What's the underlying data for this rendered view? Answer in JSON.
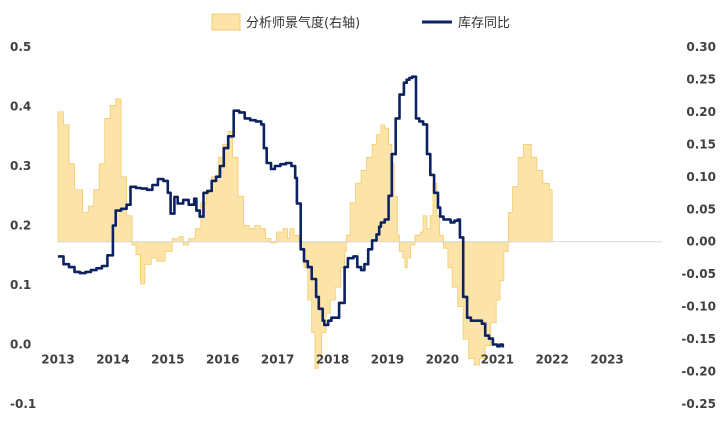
{
  "chart_data": {
    "type": "area+line",
    "title": "",
    "x_ticks": [
      "2013",
      "2014",
      "2015",
      "2016",
      "2017",
      "2018",
      "2019",
      "2020",
      "2021",
      "2022",
      "2023"
    ],
    "y_left": {
      "ticks": [
        "0.5",
        "0.4",
        "0.3",
        "0.2",
        "0.1",
        "0.0",
        "-0.1"
      ],
      "range": [
        -0.1,
        0.5
      ]
    },
    "y_right": {
      "ticks": [
        "0.30",
        "0.25",
        "0.20",
        "0.15",
        "0.10",
        "0.05",
        "0.00",
        "-0.05",
        "-0.10",
        "-0.15",
        "-0.20",
        "-0.25"
      ],
      "range": [
        -0.25,
        0.3
      ]
    },
    "grid": false,
    "legend_position": "top",
    "series": [
      {
        "name": "分析师景气度(右轴)",
        "kind": "area",
        "axis": "right",
        "color": "#FCE4A8",
        "edge_color": "#F3CB6C",
        "points": [
          [
            2013.0,
            0.2
          ],
          [
            2013.1,
            0.18
          ],
          [
            2013.2,
            0.12
          ],
          [
            2013.3,
            0.08
          ],
          [
            2013.45,
            0.045
          ],
          [
            2013.55,
            0.055
          ],
          [
            2013.65,
            0.08
          ],
          [
            2013.75,
            0.12
          ],
          [
            2013.85,
            0.19
          ],
          [
            2013.95,
            0.21
          ],
          [
            2014.05,
            0.22
          ],
          [
            2014.15,
            0.1
          ],
          [
            2014.25,
            0.04
          ],
          [
            2014.35,
            -0.005
          ],
          [
            2014.42,
            -0.02
          ],
          [
            2014.5,
            -0.065
          ],
          [
            2014.58,
            -0.035
          ],
          [
            2014.7,
            -0.025
          ],
          [
            2014.8,
            -0.03
          ],
          [
            2014.95,
            -0.015
          ],
          [
            2015.08,
            0.005
          ],
          [
            2015.2,
            0.008
          ],
          [
            2015.28,
            -0.005
          ],
          [
            2015.38,
            0.005
          ],
          [
            2015.5,
            0.02
          ],
          [
            2015.6,
            0.06
          ],
          [
            2015.7,
            0.08
          ],
          [
            2015.8,
            0.1
          ],
          [
            2015.92,
            0.13
          ],
          [
            2016.0,
            0.15
          ],
          [
            2016.1,
            0.17
          ],
          [
            2016.18,
            0.13
          ],
          [
            2016.28,
            0.07
          ],
          [
            2016.38,
            0.025
          ],
          [
            2016.48,
            0.02
          ],
          [
            2016.58,
            0.025
          ],
          [
            2016.68,
            0.02
          ],
          [
            2016.78,
            0.005
          ],
          [
            2016.88,
            -0.002
          ],
          [
            2016.98,
            0.015
          ],
          [
            2017.1,
            0.02
          ],
          [
            2017.18,
            0.005
          ],
          [
            2017.22,
            0.02
          ],
          [
            2017.3,
            0.01
          ],
          [
            2017.38,
            0.005
          ],
          [
            2017.4,
            -0.01
          ],
          [
            2017.48,
            -0.04
          ],
          [
            2017.55,
            -0.09
          ],
          [
            2017.62,
            -0.14
          ],
          [
            2017.68,
            -0.195
          ],
          [
            2017.74,
            -0.175
          ],
          [
            2017.8,
            -0.14
          ],
          [
            2017.88,
            -0.11
          ],
          [
            2017.96,
            -0.09
          ],
          [
            2018.05,
            -0.07
          ],
          [
            2018.15,
            -0.04
          ],
          [
            2018.22,
            -0.015
          ],
          [
            2018.25,
            0.01
          ],
          [
            2018.32,
            0.06
          ],
          [
            2018.42,
            0.09
          ],
          [
            2018.52,
            0.11
          ],
          [
            2018.62,
            0.13
          ],
          [
            2018.72,
            0.15
          ],
          [
            2018.8,
            0.165
          ],
          [
            2018.88,
            0.18
          ],
          [
            2018.95,
            0.175
          ],
          [
            2019.02,
            0.15
          ],
          [
            2019.08,
            0.12
          ],
          [
            2019.12,
            0.07
          ],
          [
            2019.18,
            0.01
          ],
          [
            2019.22,
            -0.015
          ],
          [
            2019.28,
            -0.025
          ],
          [
            2019.32,
            -0.04
          ],
          [
            2019.36,
            -0.025
          ],
          [
            2019.42,
            -0.005
          ],
          [
            2019.5,
            0.01
          ],
          [
            2019.6,
            0.015
          ],
          [
            2019.65,
            0.04
          ],
          [
            2019.72,
            0.02
          ],
          [
            2019.78,
            0.04
          ],
          [
            2019.83,
            0.09
          ],
          [
            2019.9,
            0.04
          ],
          [
            2019.95,
            0.01
          ],
          [
            2020.02,
            -0.01
          ],
          [
            2020.1,
            -0.04
          ],
          [
            2020.18,
            -0.07
          ],
          [
            2020.28,
            -0.1
          ],
          [
            2020.38,
            -0.15
          ],
          [
            2020.48,
            -0.18
          ],
          [
            2020.58,
            -0.19
          ],
          [
            2020.68,
            -0.18
          ],
          [
            2020.78,
            -0.16
          ],
          [
            2020.88,
            -0.125
          ],
          [
            2020.98,
            -0.09
          ],
          [
            2021.05,
            -0.06
          ],
          [
            2021.12,
            -0.015
          ],
          [
            2021.2,
            0.045
          ],
          [
            2021.28,
            0.085
          ],
          [
            2021.38,
            0.13
          ],
          [
            2021.48,
            0.15
          ],
          [
            2021.55,
            0.15
          ],
          [
            2021.62,
            0.13
          ],
          [
            2021.72,
            0.11
          ],
          [
            2021.83,
            0.09
          ],
          [
            2021.95,
            0.08
          ],
          [
            2022.0,
            0.07
          ]
        ]
      },
      {
        "name": "库存同比",
        "kind": "line",
        "axis": "left",
        "color": "#0D2260",
        "points": [
          [
            2013.0,
            0.148
          ],
          [
            2013.1,
            0.135
          ],
          [
            2013.2,
            0.13
          ],
          [
            2013.3,
            0.122
          ],
          [
            2013.4,
            0.12
          ],
          [
            2013.5,
            0.122
          ],
          [
            2013.6,
            0.125
          ],
          [
            2013.7,
            0.128
          ],
          [
            2013.8,
            0.132
          ],
          [
            2013.9,
            0.15
          ],
          [
            2014.0,
            0.2
          ],
          [
            2014.05,
            0.225
          ],
          [
            2014.15,
            0.228
          ],
          [
            2014.25,
            0.235
          ],
          [
            2014.32,
            0.265
          ],
          [
            2014.42,
            0.263
          ],
          [
            2014.52,
            0.262
          ],
          [
            2014.62,
            0.26
          ],
          [
            2014.72,
            0.268
          ],
          [
            2014.82,
            0.278
          ],
          [
            2014.92,
            0.275
          ],
          [
            2015.0,
            0.255
          ],
          [
            2015.05,
            0.22
          ],
          [
            2015.12,
            0.248
          ],
          [
            2015.18,
            0.237
          ],
          [
            2015.28,
            0.243
          ],
          [
            2015.38,
            0.235
          ],
          [
            2015.48,
            0.245
          ],
          [
            2015.52,
            0.225
          ],
          [
            2015.58,
            0.215
          ],
          [
            2015.65,
            0.255
          ],
          [
            2015.72,
            0.258
          ],
          [
            2015.8,
            0.275
          ],
          [
            2015.88,
            0.282
          ],
          [
            2015.95,
            0.3
          ],
          [
            2016.02,
            0.33
          ],
          [
            2016.1,
            0.35
          ],
          [
            2016.2,
            0.393
          ],
          [
            2016.3,
            0.39
          ],
          [
            2016.4,
            0.38
          ],
          [
            2016.5,
            0.377
          ],
          [
            2016.6,
            0.375
          ],
          [
            2016.7,
            0.37
          ],
          [
            2016.75,
            0.33
          ],
          [
            2016.8,
            0.305
          ],
          [
            2016.88,
            0.295
          ],
          [
            2016.95,
            0.3
          ],
          [
            2017.05,
            0.303
          ],
          [
            2017.15,
            0.305
          ],
          [
            2017.25,
            0.3
          ],
          [
            2017.32,
            0.28
          ],
          [
            2017.35,
            0.237
          ],
          [
            2017.42,
            0.16
          ],
          [
            2017.48,
            0.14
          ],
          [
            2017.55,
            0.13
          ],
          [
            2017.62,
            0.11
          ],
          [
            2017.7,
            0.08
          ],
          [
            2017.75,
            0.06
          ],
          [
            2017.82,
            0.04
          ],
          [
            2017.85,
            0.033
          ],
          [
            2017.92,
            0.04
          ],
          [
            2017.98,
            0.045
          ],
          [
            2018.05,
            0.045
          ],
          [
            2018.12,
            0.07
          ],
          [
            2018.22,
            0.13
          ],
          [
            2018.28,
            0.145
          ],
          [
            2018.38,
            0.148
          ],
          [
            2018.45,
            0.13
          ],
          [
            2018.52,
            0.125
          ],
          [
            2018.58,
            0.135
          ],
          [
            2018.65,
            0.16
          ],
          [
            2018.72,
            0.175
          ],
          [
            2018.8,
            0.185
          ],
          [
            2018.85,
            0.198
          ],
          [
            2018.88,
            0.205
          ],
          [
            2018.95,
            0.21
          ],
          [
            2019.02,
            0.25
          ],
          [
            2019.08,
            0.32
          ],
          [
            2019.15,
            0.38
          ],
          [
            2019.22,
            0.42
          ],
          [
            2019.3,
            0.44
          ],
          [
            2019.35,
            0.445
          ],
          [
            2019.4,
            0.448
          ],
          [
            2019.45,
            0.45
          ],
          [
            2019.52,
            0.38
          ],
          [
            2019.58,
            0.375
          ],
          [
            2019.65,
            0.37
          ],
          [
            2019.72,
            0.32
          ],
          [
            2019.78,
            0.285
          ],
          [
            2019.85,
            0.255
          ],
          [
            2019.92,
            0.23
          ],
          [
            2019.96,
            0.215
          ],
          [
            2020.02,
            0.21
          ],
          [
            2020.08,
            0.21
          ],
          [
            2020.15,
            0.205
          ],
          [
            2020.22,
            0.208
          ],
          [
            2020.28,
            0.21
          ],
          [
            2020.32,
            0.18
          ],
          [
            2020.38,
            0.08
          ],
          [
            2020.45,
            0.045
          ],
          [
            2020.52,
            0.04
          ],
          [
            2020.58,
            0.04
          ],
          [
            2020.65,
            0.04
          ],
          [
            2020.72,
            0.035
          ],
          [
            2020.78,
            0.015
          ],
          [
            2020.85,
            0.01
          ],
          [
            2020.92,
            0.0
          ],
          [
            2021.0,
            -0.003
          ],
          [
            2021.05,
            0.0
          ],
          [
            2021.1,
            -0.005
          ]
        ]
      }
    ]
  },
  "legend": {
    "area_label": "分析师景气度(右轴)",
    "line_label": "库存同比"
  }
}
